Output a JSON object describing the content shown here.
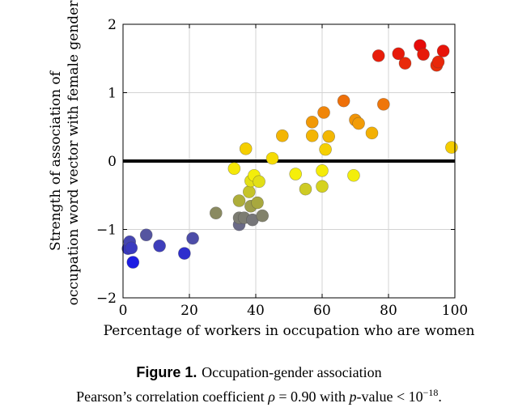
{
  "chart_data": {
    "type": "scatter",
    "xlabel": "Percentage of workers in occupation who are women",
    "ylabel_line1": "Strength of association of",
    "ylabel_line2": "occupation word vector with female gender",
    "xlim": [
      0,
      100
    ],
    "ylim": [
      -2,
      2
    ],
    "xticks": [
      0,
      20,
      40,
      60,
      80,
      100
    ],
    "yticks": [
      -2,
      -1,
      0,
      1,
      2
    ],
    "xtick_labels": [
      "0",
      "20",
      "40",
      "60",
      "80",
      "100"
    ],
    "ytick_labels": [
      "−2",
      "−1",
      "0",
      "1",
      "2"
    ],
    "grid": true,
    "reference_line_y": 0,
    "points": [
      {
        "x": 1.5,
        "y": -1.28
      },
      {
        "x": 2.0,
        "y": -1.18
      },
      {
        "x": 2.5,
        "y": -1.27
      },
      {
        "x": 3.0,
        "y": -1.48
      },
      {
        "x": 7.0,
        "y": -1.08
      },
      {
        "x": 11.0,
        "y": -1.24
      },
      {
        "x": 18.5,
        "y": -1.35
      },
      {
        "x": 21.0,
        "y": -1.13
      },
      {
        "x": 28.0,
        "y": -0.76
      },
      {
        "x": 33.5,
        "y": -0.11
      },
      {
        "x": 35.0,
        "y": -0.93
      },
      {
        "x": 35.0,
        "y": -0.83
      },
      {
        "x": 35.0,
        "y": -0.58
      },
      {
        "x": 36.5,
        "y": -0.83
      },
      {
        "x": 37.0,
        "y": 0.18
      },
      {
        "x": 38.0,
        "y": -0.45
      },
      {
        "x": 38.5,
        "y": -0.66
      },
      {
        "x": 38.5,
        "y": -0.29
      },
      {
        "x": 39.0,
        "y": -0.86
      },
      {
        "x": 39.5,
        "y": -0.21
      },
      {
        "x": 40.5,
        "y": -0.61
      },
      {
        "x": 41.0,
        "y": -0.3
      },
      {
        "x": 42.0,
        "y": -0.8
      },
      {
        "x": 45.0,
        "y": 0.04
      },
      {
        "x": 48.0,
        "y": 0.37
      },
      {
        "x": 52.0,
        "y": -0.19
      },
      {
        "x": 55.0,
        "y": -0.41
      },
      {
        "x": 57.0,
        "y": 0.57
      },
      {
        "x": 57.0,
        "y": 0.37
      },
      {
        "x": 60.0,
        "y": -0.37
      },
      {
        "x": 60.0,
        "y": -0.14
      },
      {
        "x": 60.5,
        "y": 0.71
      },
      {
        "x": 61.0,
        "y": 0.17
      },
      {
        "x": 62.0,
        "y": 0.36
      },
      {
        "x": 66.5,
        "y": 0.88
      },
      {
        "x": 69.5,
        "y": -0.21
      },
      {
        "x": 70.0,
        "y": 0.6
      },
      {
        "x": 71.0,
        "y": 0.55
      },
      {
        "x": 75.0,
        "y": 0.41
      },
      {
        "x": 77.0,
        "y": 1.54
      },
      {
        "x": 78.5,
        "y": 0.83
      },
      {
        "x": 83.0,
        "y": 1.57
      },
      {
        "x": 85.0,
        "y": 1.43
      },
      {
        "x": 89.5,
        "y": 1.69
      },
      {
        "x": 90.5,
        "y": 1.56
      },
      {
        "x": 94.5,
        "y": 1.4
      },
      {
        "x": 95.0,
        "y": 1.45
      },
      {
        "x": 96.5,
        "y": 1.61
      },
      {
        "x": 99.0,
        "y": 0.2
      }
    ]
  },
  "caption": {
    "figure_label": "Figure 1.",
    "title": "Occupation-gender association",
    "line2_before_rho": "Pearson’s correlation coefficient ",
    "rho_symbol": "ρ",
    "line2_value": " = 0.90 with ",
    "p_letter": "p",
    "line2_pvalue": "-value < 10",
    "exponent": "−18",
    "period": "."
  },
  "colors": {
    "grid": "#d3d3d3",
    "axis": "#000000",
    "zero_line": "#000000",
    "marker_stroke": "#444444"
  }
}
